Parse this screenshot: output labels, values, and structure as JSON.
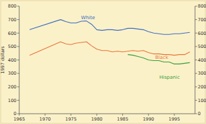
{
  "chart_data": {
    "type": "line",
    "y_label": "1997 dollars",
    "x": [
      1967,
      1973,
      1974,
      1975,
      1976,
      1977,
      1978,
      1979,
      1980,
      1981,
      1982,
      1983,
      1984,
      1985,
      1986,
      1987,
      1988,
      1989,
      1990,
      1991,
      1992,
      1993,
      1994,
      1995,
      1996,
      1997,
      1998
    ],
    "series": [
      {
        "name": "White",
        "color": "#3f6fc2",
        "values": [
          625,
          700,
          685,
          675,
          675,
          688,
          690,
          665,
          625,
          620,
          625,
          625,
          620,
          625,
          635,
          635,
          630,
          625,
          610,
          600,
          595,
          590,
          590,
          595,
          595,
          600,
          605
        ]
      },
      {
        "name": "Black",
        "color": "#e8773a",
        "values": [
          435,
          535,
          520,
          515,
          525,
          530,
          535,
          505,
          480,
          470,
          470,
          460,
          465,
          460,
          465,
          470,
          465,
          470,
          455,
          445,
          445,
          440,
          440,
          435,
          440,
          440,
          460
        ]
      },
      {
        "name": "Hispanic",
        "color": "#3a9e3a",
        "values": [
          null,
          null,
          null,
          null,
          null,
          null,
          null,
          null,
          null,
          null,
          null,
          null,
          null,
          null,
          440,
          435,
          425,
          415,
          400,
          395,
          395,
          385,
          385,
          370,
          370,
          375,
          380
        ]
      }
    ],
    "xlim": [
      1965,
      1999
    ],
    "ylim": [
      0,
      800
    ],
    "xticks": [
      1965,
      1970,
      1975,
      1980,
      1985,
      1990,
      1995
    ],
    "yticks": [
      0,
      100,
      200,
      300,
      400,
      500,
      600,
      700,
      800
    ],
    "grid": false
  }
}
